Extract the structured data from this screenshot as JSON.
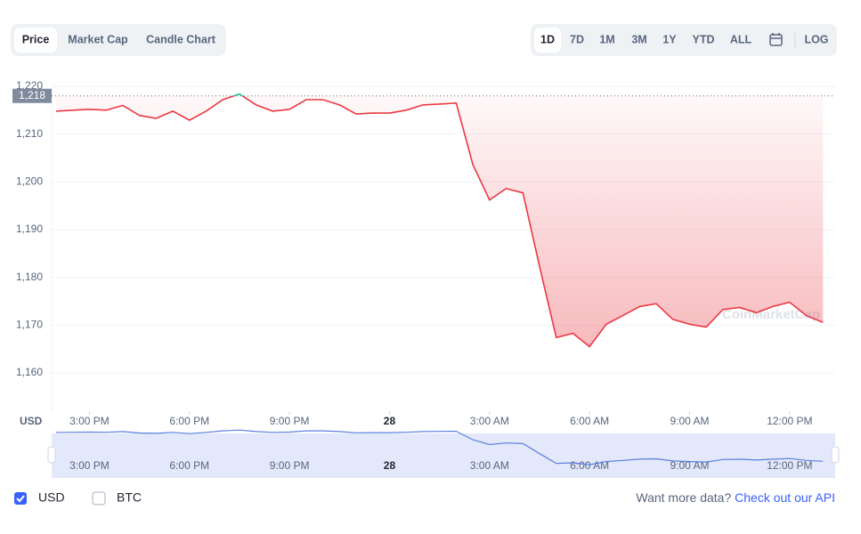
{
  "tabs": [
    "Price",
    "Market Cap",
    "Candle Chart"
  ],
  "ranges": [
    "1D",
    "7D",
    "1M",
    "3M",
    "1Y",
    "YTD",
    "ALL"
  ],
  "log_button": "LOG",
  "currencies": [
    "USD",
    "BTC"
  ],
  "footer": {
    "text": "Want more data?",
    "link": "Check out our API"
  },
  "chart_data": {
    "type": "line",
    "ylabel": "USD",
    "watermark": "CoinMarketCap",
    "reference": {
      "value": 1218,
      "label": "1,218"
    },
    "ylim": [
      1152,
      1220
    ],
    "yticks": [
      {
        "value": 1160,
        "label": "1,160"
      },
      {
        "value": 1170,
        "label": "1,170"
      },
      {
        "value": 1180,
        "label": "1,180"
      },
      {
        "value": 1190,
        "label": "1,190"
      },
      {
        "value": 1200,
        "label": "1,200"
      },
      {
        "value": 1210,
        "label": "1,210"
      },
      {
        "value": 1220,
        "label": "1,220"
      }
    ],
    "xlim": [
      0,
      47
    ],
    "xticks": [
      {
        "value": 2,
        "label": "3:00 PM"
      },
      {
        "value": 8,
        "label": "6:00 PM"
      },
      {
        "value": 14,
        "label": "9:00 PM"
      },
      {
        "value": 20,
        "label": "28"
      },
      {
        "value": 26,
        "label": "3:00 AM"
      },
      {
        "value": 32,
        "label": "6:00 AM"
      },
      {
        "value": 38,
        "label": "9:00 AM"
      },
      {
        "value": 44,
        "label": "12:00 PM"
      }
    ],
    "grid": true,
    "series": [
      {
        "name": "USD",
        "color": "#ea3943",
        "color_above": "#16c784",
        "nav_color": "#5b7fe0",
        "values": [
          1214.8,
          1215,
          1215.2,
          1215,
          1216,
          1213.9,
          1213.3,
          1214.8,
          1212.9,
          1214.8,
          1217.2,
          1218.4,
          1216.1,
          1214.8,
          1215.2,
          1217.2,
          1217.2,
          1216.1,
          1214.2,
          1214.4,
          1214.4,
          1215,
          1216.1,
          1216.3,
          1216.5,
          1203.6,
          1196.2,
          1198.6,
          1197.7,
          1182.3,
          1167.4,
          1168.3,
          1165.5,
          1170.2,
          1172,
          1173.9,
          1174.5,
          1171.2,
          1170.2,
          1169.6,
          1173.3,
          1173.7,
          1172.6,
          1173.9,
          1174.8,
          1172,
          1170.6
        ]
      }
    ]
  }
}
